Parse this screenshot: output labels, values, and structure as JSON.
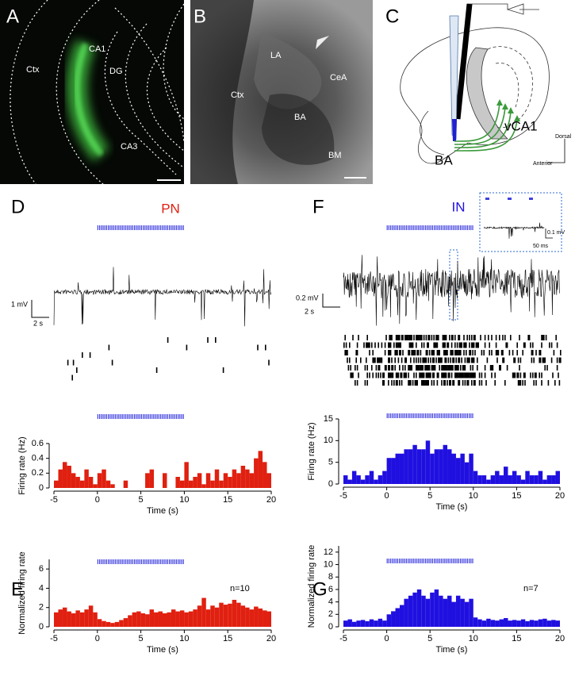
{
  "figure": {
    "panels": [
      "A",
      "B",
      "C",
      "D",
      "E",
      "F",
      "G"
    ],
    "panel_a": [
      "Ctx",
      "CA1",
      "DG",
      "CA3"
    ],
    "panel_b": [
      "LA",
      "CeA",
      "Ctx",
      "BA",
      "BM"
    ],
    "panel_c": [
      "BA",
      "vCA1",
      "Dorsal",
      "Anterior"
    ],
    "pn_scale": [
      "1 mV",
      "2 s"
    ],
    "in_scale": [
      "0.2 mV",
      "2 s"
    ],
    "inset_scale": [
      "0.1 mV",
      "50 ms"
    ]
  },
  "chart_data": [
    {
      "type": "histogram",
      "title": "PN",
      "color": "#e02010",
      "xlabel": "Time (s)",
      "ylabel": "Firing rate (Hz)",
      "stimulus_window": [
        0,
        10
      ],
      "bins": [
        -5,
        -4.5,
        -4,
        -3.5,
        -3,
        -2.5,
        -2,
        -1.5,
        -1,
        -0.5,
        0,
        0.5,
        1,
        1.5,
        2,
        2.5,
        3,
        3.5,
        4,
        4.5,
        5,
        5.5,
        6,
        6.5,
        7,
        7.5,
        8,
        8.5,
        9,
        9.5,
        10,
        10.5,
        11,
        11.5,
        12,
        12.5,
        13,
        13.5,
        14,
        14.5,
        15,
        15.5,
        16,
        16.5,
        17,
        17.5,
        18,
        18.5,
        19,
        19.5,
        20
      ],
      "values": [
        0.1,
        0.25,
        0.35,
        0.3,
        0.2,
        0.15,
        0.1,
        0.25,
        0.15,
        0.05,
        0.2,
        0.25,
        0.1,
        0.05,
        0,
        0,
        0.1,
        0,
        0,
        0,
        0,
        0.2,
        0.25,
        0,
        0,
        0.2,
        0,
        0,
        0.15,
        0.1,
        0.35,
        0.1,
        0.15,
        0.2,
        0.05,
        0.2,
        0.1,
        0.25,
        0.1,
        0.2,
        0.15,
        0.25,
        0.2,
        0.3,
        0.25,
        0.2,
        0.4,
        0.5,
        0.35,
        0.2
      ],
      "xlim": [
        -5,
        20
      ],
      "xticks": [
        -5,
        0,
        5,
        10,
        15,
        20
      ],
      "ylim": [
        0,
        0.6
      ],
      "yticks": [
        0,
        0.2,
        0.4,
        0.6
      ]
    },
    {
      "type": "histogram",
      "annotation": "n=10",
      "color": "#e02010",
      "xlabel": "Time (s)",
      "ylabel": "Normalized firing rate",
      "stimulus_window": [
        0,
        10
      ],
      "bins": [
        -5,
        -4.5,
        -4,
        -3.5,
        -3,
        -2.5,
        -2,
        -1.5,
        -1,
        -0.5,
        0,
        0.5,
        1,
        1.5,
        2,
        2.5,
        3,
        3.5,
        4,
        4.5,
        5,
        5.5,
        6,
        6.5,
        7,
        7.5,
        8,
        8.5,
        9,
        9.5,
        10,
        10.5,
        11,
        11.5,
        12,
        12.5,
        13,
        13.5,
        14,
        14.5,
        15,
        15.5,
        16,
        16.5,
        17,
        17.5,
        18,
        18.5,
        19,
        19.5,
        20
      ],
      "values": [
        1.5,
        1.8,
        2,
        1.6,
        1.4,
        1.7,
        1.5,
        1.8,
        2.2,
        1.5,
        0.8,
        0.6,
        0.5,
        0.4,
        0.5,
        0.7,
        0.9,
        1.2,
        1.5,
        1.6,
        1.4,
        1.3,
        1.8,
        1.5,
        1.6,
        1.4,
        1.5,
        1.8,
        1.6,
        1.7,
        1.5,
        1.6,
        1.8,
        2.2,
        3,
        1.8,
        2.2,
        2,
        2.5,
        2.3,
        2.4,
        2.8,
        2.5,
        2.2,
        2,
        1.8,
        2.1,
        1.9,
        1.7,
        1.6
      ],
      "xlim": [
        -5,
        20
      ],
      "xticks": [
        -5,
        0,
        5,
        10,
        15,
        20
      ],
      "ylim": [
        0,
        7
      ],
      "yticks": [
        0,
        2,
        4,
        6
      ]
    },
    {
      "type": "histogram",
      "title": "IN",
      "color": "#2010e0",
      "xlabel": "Time (s)",
      "ylabel": "Firing rate (Hz)",
      "stimulus_window": [
        0,
        10
      ],
      "bins": [
        -5,
        -4.5,
        -4,
        -3.5,
        -3,
        -2.5,
        -2,
        -1.5,
        -1,
        -0.5,
        0,
        0.5,
        1,
        1.5,
        2,
        2.5,
        3,
        3.5,
        4,
        4.5,
        5,
        5.5,
        6,
        6.5,
        7,
        7.5,
        8,
        8.5,
        9,
        9.5,
        10,
        10.5,
        11,
        11.5,
        12,
        12.5,
        13,
        13.5,
        14,
        14.5,
        15,
        15.5,
        16,
        16.5,
        17,
        17.5,
        18,
        18.5,
        19,
        19.5,
        20
      ],
      "values": [
        2,
        1,
        3,
        2,
        1,
        2,
        3,
        1,
        2,
        3,
        6,
        6,
        7,
        7,
        8,
        8,
        9,
        8,
        8,
        10,
        7,
        8,
        8,
        9,
        8,
        7,
        6,
        7,
        5,
        7,
        3,
        2,
        2,
        1,
        2,
        3,
        2,
        4,
        2,
        3,
        2,
        1,
        3,
        2,
        2,
        3,
        1,
        2,
        2,
        3
      ],
      "xlim": [
        -5,
        20
      ],
      "xticks": [
        -5,
        0,
        5,
        10,
        15,
        20
      ],
      "ylim": [
        0,
        15
      ],
      "yticks": [
        0,
        5,
        10,
        15
      ]
    },
    {
      "type": "histogram",
      "annotation": "n=7",
      "color": "#2010e0",
      "xlabel": "Time (s)",
      "ylabel": "Normalized firing rate",
      "stimulus_window": [
        0,
        10
      ],
      "bins": [
        -5,
        -4.5,
        -4,
        -3.5,
        -3,
        -2.5,
        -2,
        -1.5,
        -1,
        -0.5,
        0,
        0.5,
        1,
        1.5,
        2,
        2.5,
        3,
        3.5,
        4,
        4.5,
        5,
        5.5,
        6,
        6.5,
        7,
        7.5,
        8,
        8.5,
        9,
        9.5,
        10,
        10.5,
        11,
        11.5,
        12,
        12.5,
        13,
        13.5,
        14,
        14.5,
        15,
        15.5,
        16,
        16.5,
        17,
        17.5,
        18,
        18.5,
        19,
        19.5,
        20
      ],
      "values": [
        1,
        1.2,
        0.8,
        1,
        1.1,
        0.9,
        1.2,
        1,
        1.3,
        1,
        2,
        2.5,
        3,
        3.5,
        4.5,
        5,
        5.5,
        6,
        5,
        4.5,
        5.5,
        6,
        5,
        4.5,
        5,
        4,
        5,
        4.5,
        4,
        4.5,
        1.5,
        1.2,
        1,
        1.3,
        1.1,
        1,
        1.2,
        1.4,
        1,
        1.1,
        1,
        1.2,
        0.9,
        1.1,
        1,
        1.2,
        1.3,
        1,
        1.1,
        1
      ],
      "xlim": [
        -5,
        20
      ],
      "xticks": [
        -5,
        0,
        5,
        10,
        15,
        20
      ],
      "ylim": [
        0,
        13
      ],
      "yticks": [
        0,
        2,
        4,
        6,
        8,
        10,
        12
      ]
    }
  ]
}
